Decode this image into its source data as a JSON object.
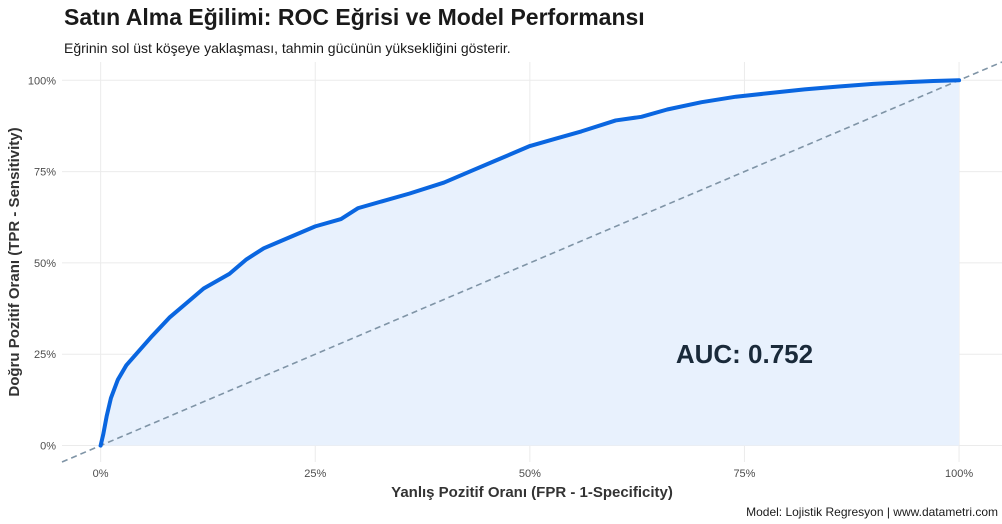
{
  "chart_data": {
    "type": "line",
    "title": "Satın Alma Eğilimi: ROC Eğrisi ve Model Performansı",
    "subtitle": "Eğrinin sol üst köşeye yaklaşması, tahmin gücünün yüksekliğini gösterir.",
    "caption": "Model: Lojistik Regresyon | www.datametri.com",
    "xlabel": "Yanlış Pozitif Oranı (FPR - 1-Specificity)",
    "ylabel": "Doğru Pozitif Oranı (TPR - Sensitivity)",
    "xlim": [
      -0.045,
      1.05
    ],
    "ylim": [
      -0.045,
      1.05
    ],
    "x_ticks": [
      0,
      0.25,
      0.5,
      0.75,
      1
    ],
    "x_tick_labels": [
      "0%",
      "25%",
      "50%",
      "75%",
      "100%"
    ],
    "y_ticks": [
      0,
      0.25,
      0.5,
      0.75,
      1
    ],
    "y_tick_labels": [
      "0%",
      "25%",
      "50%",
      "75%",
      "100%"
    ],
    "grid": true,
    "auc_label": "AUC: 0.752",
    "auc_position": [
      0.75,
      0.25
    ],
    "series": [
      {
        "name": "ROC",
        "color": "#0a66e0",
        "fill": "#e8f1fd",
        "x": [
          0,
          0.003,
          0.007,
          0.012,
          0.02,
          0.03,
          0.045,
          0.06,
          0.08,
          0.1,
          0.12,
          0.15,
          0.17,
          0.19,
          0.21,
          0.25,
          0.28,
          0.3,
          0.33,
          0.36,
          0.4,
          0.43,
          0.46,
          0.5,
          0.53,
          0.56,
          0.6,
          0.63,
          0.66,
          0.7,
          0.74,
          0.78,
          0.82,
          0.86,
          0.9,
          0.94,
          0.97,
          1
        ],
        "y": [
          0,
          0.03,
          0.08,
          0.13,
          0.18,
          0.22,
          0.26,
          0.3,
          0.35,
          0.39,
          0.43,
          0.47,
          0.51,
          0.54,
          0.56,
          0.6,
          0.62,
          0.65,
          0.67,
          0.69,
          0.72,
          0.75,
          0.78,
          0.82,
          0.84,
          0.86,
          0.89,
          0.9,
          0.92,
          0.94,
          0.955,
          0.965,
          0.975,
          0.983,
          0.99,
          0.995,
          0.998,
          1
        ]
      },
      {
        "name": "Random",
        "color": "#7f94a6",
        "dashed": true,
        "x": [
          -0.045,
          1.05
        ],
        "y": [
          -0.045,
          1.05
        ]
      }
    ]
  }
}
